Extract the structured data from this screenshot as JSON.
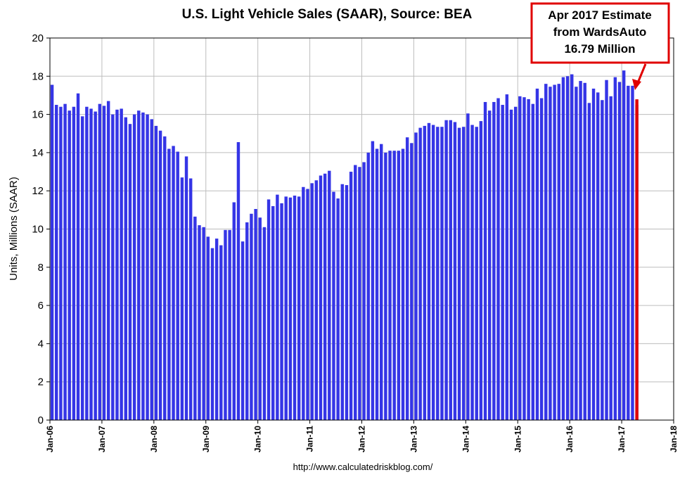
{
  "chart_data": {
    "type": "bar",
    "title": "U.S. Light Vehicle Sales (SAAR), Source: BEA",
    "ylabel": "Units, Millions (SAAR)",
    "source": "http://www.calculatedriskblog.com/",
    "ylim": [
      0,
      20
    ],
    "yticks": [
      "0",
      "2",
      "4",
      "6",
      "8",
      "10",
      "12",
      "14",
      "16",
      "18",
      "20"
    ],
    "xticks": [
      "Jan-06",
      "Jan-07",
      "Jan-08",
      "Jan-09",
      "Jan-10",
      "Jan-11",
      "Jan-12",
      "Jan-13",
      "Jan-14",
      "Jan-15",
      "Jan-16",
      "Jan-17",
      "Jan-18"
    ],
    "x_start": "Jan-06",
    "x_end": "Jan-18",
    "grid": true,
    "series": [
      {
        "color": "#3535e6",
        "values": [
          17.55,
          16.5,
          16.4,
          16.55,
          16.2,
          16.4,
          17.1,
          15.9,
          16.4,
          16.3,
          16.15,
          16.55,
          16.45,
          16.7,
          16.0,
          16.25,
          16.3,
          15.85,
          15.5,
          16.0,
          16.2,
          16.1,
          16.0,
          15.75,
          15.4,
          15.15,
          14.85,
          14.2,
          14.35,
          14.05,
          12.7,
          13.8,
          12.65,
          10.65,
          10.2,
          10.1,
          9.6,
          9.0,
          9.5,
          9.15,
          9.95,
          9.95,
          11.4,
          14.55,
          9.35,
          10.35,
          10.8,
          11.05,
          10.6,
          10.1,
          11.55,
          11.2,
          11.8,
          11.35,
          11.7,
          11.65,
          11.75,
          11.7,
          12.2,
          12.1,
          12.4,
          12.55,
          12.8,
          12.9,
          13.05,
          11.95,
          11.6,
          12.35,
          12.3,
          13.0,
          13.35,
          13.25,
          13.5,
          14.0,
          14.6,
          14.2,
          14.45,
          14.0,
          14.1,
          14.1,
          14.1,
          14.2,
          14.8,
          14.5,
          15.05,
          15.3,
          15.4,
          15.55,
          15.45,
          15.35,
          15.35,
          15.7,
          15.7,
          15.6,
          15.3,
          15.35,
          16.05,
          15.45,
          15.35,
          15.65,
          16.65,
          16.2,
          16.65,
          16.85,
          16.5,
          17.05,
          16.25,
          16.4,
          16.95,
          16.9,
          16.8,
          16.55,
          17.35,
          16.85,
          17.6,
          17.45,
          17.55,
          17.6,
          17.95,
          18.0,
          18.1,
          17.45,
          17.75,
          17.65,
          16.6,
          17.35,
          17.15,
          16.75,
          17.8,
          16.95,
          17.95,
          17.7,
          18.3,
          17.5,
          17.5,
          16.5
        ]
      },
      {
        "name": "Apr 2017 Estimate",
        "color": "#e00000",
        "month": "Apr-17",
        "index": 135,
        "values": [
          16.79
        ]
      }
    ],
    "annotation": {
      "lines": [
        "Apr 2017 Estimate",
        "from WardsAuto",
        "16.79 Million"
      ],
      "border_color": "#e00000"
    }
  }
}
